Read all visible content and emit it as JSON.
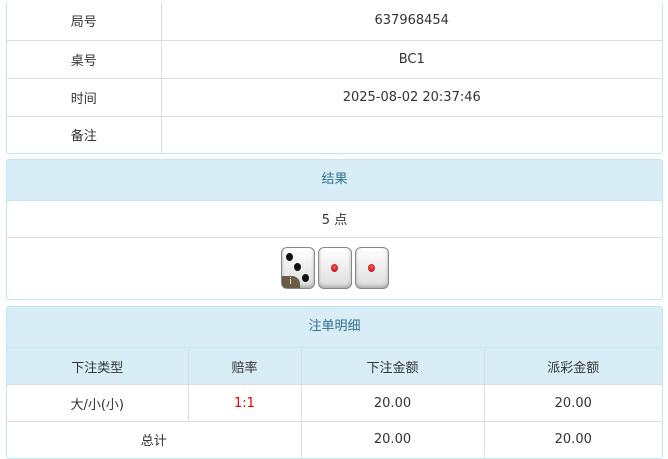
{
  "info": {
    "rows": [
      {
        "label": "局号",
        "value": "637968454"
      },
      {
        "label": "桌号",
        "value": "BC1"
      },
      {
        "label": "时间",
        "value": "2025-08-02 20:37:46"
      },
      {
        "label": "备注",
        "value": ""
      }
    ]
  },
  "result": {
    "title": "结果",
    "points": "5 点",
    "dice": [
      3,
      1,
      1
    ],
    "info_badge": "i"
  },
  "bets": {
    "title": "注单明细",
    "headers": [
      "下注类型",
      "赔率",
      "下注金额",
      "派彩金额"
    ],
    "rows": [
      {
        "type": "大/小(小)",
        "odds": "1:1",
        "amount": "20.00",
        "payout": "20.00"
      }
    ],
    "total": {
      "label": "总计",
      "amount": "20.00",
      "payout": "20.00"
    },
    "odds_color": "#ee0000"
  }
}
